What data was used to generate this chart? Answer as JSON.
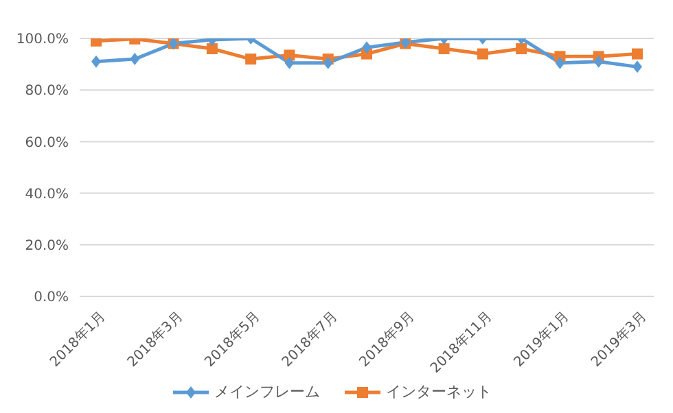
{
  "chart_data": {
    "type": "line",
    "categories": [
      "2018年1月",
      null,
      "2018年3月",
      null,
      "2018年5月",
      null,
      "2018年7月",
      null,
      "2018年9月",
      null,
      "2018年11月",
      null,
      "2019年1月",
      null,
      "2019年3月"
    ],
    "series": [
      {
        "name": "メインフレーム",
        "color": "#5b9bd5",
        "marker": "diamond",
        "values": [
          91,
          92,
          98,
          99.5,
          100,
          90.5,
          90.5,
          96.5,
          98.5,
          100,
          100,
          100,
          90.5,
          91,
          89
        ]
      },
      {
        "name": "インターネット",
        "color": "#ed7d31",
        "marker": "square",
        "values": [
          99,
          99.8,
          98,
          96,
          92,
          93.5,
          92,
          94,
          98,
          96,
          94,
          96,
          93,
          93,
          94
        ]
      }
    ],
    "ylim": [
      0,
      100
    ],
    "yticks": [
      {
        "value": 0,
        "label": "0.0%"
      },
      {
        "value": 20,
        "label": "20.0%"
      },
      {
        "value": 40,
        "label": "40.0%"
      },
      {
        "value": 60,
        "label": "60.0%"
      },
      {
        "value": 80,
        "label": "80.0%"
      },
      {
        "value": 100,
        "label": "100.0%"
      }
    ],
    "grid": "y",
    "legend": "bottom"
  }
}
